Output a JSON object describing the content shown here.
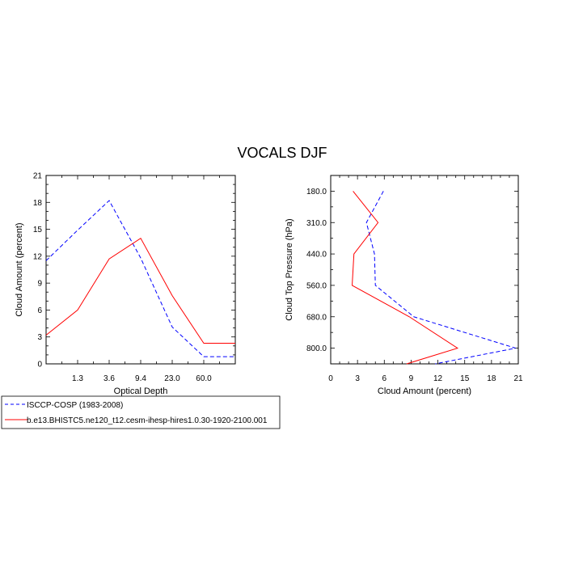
{
  "title": "VOCALS DJF",
  "colors": {
    "obs": "#0000ff",
    "model": "#ff0000"
  },
  "legend": {
    "entries": [
      {
        "label": "ISCCP-COSP (1983-2008)",
        "style": "dashed",
        "color": "#0000ff"
      },
      {
        "label": "b.e13.BHISTC5.ne120_t12.cesm-ihesp-hires1.0.30-1920-2100.001",
        "style": "solid",
        "color": "#ff0000"
      }
    ]
  },
  "chart_data": [
    {
      "type": "line",
      "xlabel": "Optical Depth",
      "ylabel": "Cloud Amount (percent)",
      "categories": [
        "1.3",
        "3.6",
        "9.4",
        "23.0",
        "60.0"
      ],
      "x": [
        0,
        1,
        2,
        3,
        4,
        5,
        6
      ],
      "xlim": [
        0,
        6
      ],
      "ylim": [
        0,
        21
      ],
      "yticks": [
        "0",
        "3",
        "6",
        "9",
        "12",
        "15",
        "18",
        "21"
      ],
      "series": [
        {
          "name": "ISCCP-COSP (1983-2008)",
          "values": [
            11.5,
            14.9,
            18.2,
            11.8,
            4.1,
            0.8,
            0.8
          ]
        },
        {
          "name": "b.e13.BHISTC5.ne120_t12.cesm-ihesp-hires1.0.30-1920-2100.001",
          "values": [
            3.2,
            6.0,
            11.7,
            14.0,
            7.6,
            2.3,
            2.3
          ]
        }
      ]
    },
    {
      "type": "line",
      "xlabel": "Cloud Amount (percent)",
      "ylabel": "Cloud Top Pressure (hPa)",
      "xlim": [
        0,
        21
      ],
      "xticks": [
        "0",
        "3",
        "6",
        "9",
        "12",
        "15",
        "18",
        "21"
      ],
      "yticks": [
        "180.0",
        "310.0",
        "440.0",
        "560.0",
        "680.0",
        "800.0"
      ],
      "levels": [
        0.5,
        1.5,
        2.5,
        3.5,
        4.5,
        5.5,
        6.0
      ],
      "series": [
        {
          "name": "ISCCP-COSP (1983-2008)",
          "values": [
            5.9,
            4.0,
            4.9,
            5.0,
            9.3,
            20.7,
            11.7
          ]
        },
        {
          "name": "b.e13.BHISTC5.ne120_t12.cesm-ihesp-hires1.0.30-1920-2100.001",
          "values": [
            2.5,
            5.3,
            2.6,
            2.4,
            8.8,
            14.2,
            8.5
          ]
        }
      ]
    }
  ]
}
